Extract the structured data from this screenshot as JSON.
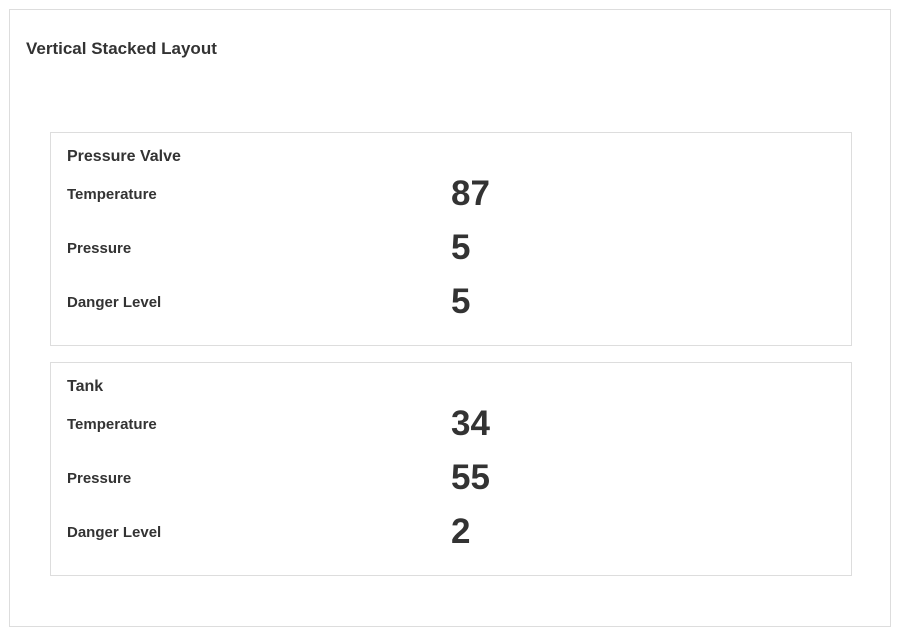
{
  "title": "Vertical Stacked Layout",
  "cards": [
    {
      "title": "Pressure Valve",
      "rows": [
        {
          "label": "Temperature",
          "value": "87"
        },
        {
          "label": "Pressure",
          "value": "5"
        },
        {
          "label": "Danger Level",
          "value": "5"
        }
      ]
    },
    {
      "title": "Tank",
      "rows": [
        {
          "label": "Temperature",
          "value": "34"
        },
        {
          "label": "Pressure",
          "value": "55"
        },
        {
          "label": "Danger Level",
          "value": "2"
        }
      ]
    }
  ]
}
